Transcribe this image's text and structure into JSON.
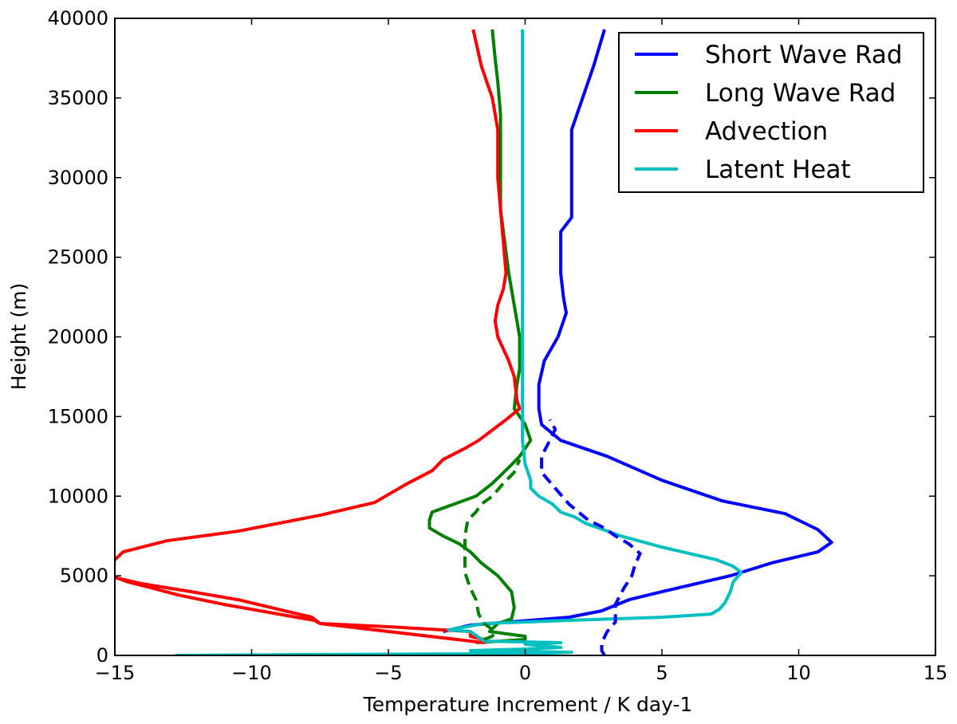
{
  "chart_data": {
    "type": "line",
    "xlabel": "Temperature Increment / K day-1",
    "ylabel": "Height (m)",
    "xlim": [
      -15,
      15
    ],
    "ylim": [
      0,
      40000
    ],
    "xticks": [
      -15,
      -10,
      -5,
      0,
      5,
      10,
      15
    ],
    "yticks": [
      0,
      5000,
      10000,
      15000,
      20000,
      25000,
      30000,
      35000,
      40000
    ],
    "xtick_labels": [
      "−15",
      "−10",
      "−5",
      "0",
      "5",
      "10",
      "15"
    ],
    "ytick_labels": [
      "0",
      "5000",
      "10000",
      "15000",
      "20000",
      "25000",
      "30000",
      "35000",
      "40000"
    ],
    "grid": false,
    "legend_position": "top-right",
    "series": [
      {
        "name": "Short Wave Rad",
        "color": "#0000ff",
        "style": "solid",
        "points": [
          [
            -3,
            1500
          ],
          [
            -2,
            1900
          ],
          [
            1.6,
            2400
          ],
          [
            2.8,
            2800
          ],
          [
            3.8,
            3500
          ],
          [
            5,
            4000
          ],
          [
            7.5,
            5000
          ],
          [
            9,
            5800
          ],
          [
            10.7,
            6500
          ],
          [
            11.2,
            7100
          ],
          [
            10.7,
            7900
          ],
          [
            9.5,
            8900
          ],
          [
            7.2,
            9700
          ],
          [
            5,
            11000
          ],
          [
            3,
            12500
          ],
          [
            1.3,
            13500
          ],
          [
            0.6,
            14500
          ],
          [
            0.5,
            15500
          ],
          [
            0.5,
            17000
          ],
          [
            0.7,
            18500
          ],
          [
            1.2,
            20000
          ],
          [
            1.5,
            21500
          ],
          [
            1.4,
            22500
          ],
          [
            1.3,
            24000
          ],
          [
            1.3,
            25500
          ],
          [
            1.3,
            26600
          ],
          [
            1.7,
            27500
          ],
          [
            1.7,
            29000
          ],
          [
            1.7,
            30000
          ],
          [
            1.7,
            31000
          ],
          [
            1.7,
            32000
          ],
          [
            1.7,
            33000
          ],
          [
            2,
            34500
          ],
          [
            2.5,
            37000
          ],
          [
            2.9,
            39300
          ]
        ]
      },
      {
        "name": "Long Wave Rad",
        "color": "#008000",
        "style": "solid",
        "points": [
          [
            -1.8,
            800
          ],
          [
            0,
            1000
          ],
          [
            0,
            1200
          ],
          [
            -1.3,
            1500
          ],
          [
            -1,
            2000
          ],
          [
            -0.5,
            2300
          ],
          [
            -0.4,
            3000
          ],
          [
            -0.5,
            4000
          ],
          [
            -1,
            5000
          ],
          [
            -1.6,
            5800
          ],
          [
            -2,
            6500
          ],
          [
            -2.4,
            7000
          ],
          [
            -3,
            7500
          ],
          [
            -3.5,
            8000
          ],
          [
            -3.5,
            8500
          ],
          [
            -3.4,
            9000
          ],
          [
            -2.6,
            9500
          ],
          [
            -1.8,
            10000
          ],
          [
            -1.2,
            10800
          ],
          [
            -0.6,
            11800
          ],
          [
            -0.2,
            12500
          ],
          [
            0.2,
            13500
          ],
          [
            0,
            14500
          ],
          [
            -0.4,
            15500
          ],
          [
            -0.3,
            17000
          ],
          [
            -0.2,
            18000
          ],
          [
            -0.2,
            19000
          ],
          [
            -0.2,
            20000
          ],
          [
            -0.3,
            21000
          ],
          [
            -0.6,
            24000
          ],
          [
            -0.9,
            28000
          ],
          [
            -0.9,
            30000
          ],
          [
            -0.9,
            32000
          ],
          [
            -0.9,
            34000
          ],
          [
            -1,
            36000
          ],
          [
            -1.1,
            37500
          ],
          [
            -1.2,
            39300
          ]
        ]
      },
      {
        "name": "Advection",
        "color": "#ff0000",
        "style": "solid",
        "points": [
          [
            -15.3,
            5000
          ],
          [
            -14,
            4500
          ],
          [
            -12.2,
            4000
          ],
          [
            -10.5,
            3500
          ],
          [
            -7.8,
            2400
          ],
          [
            -7.5,
            2000
          ],
          [
            -5,
            1800
          ],
          [
            -2,
            1500
          ],
          [
            -2,
            1200
          ],
          [
            -1.5,
            1000
          ],
          [
            -1.5,
            800
          ],
          [
            -7.5,
            2000
          ],
          [
            -7.7,
            2200
          ],
          [
            -11,
            3200
          ],
          [
            -12.7,
            3800
          ],
          [
            -13.8,
            4300
          ],
          [
            -14.5,
            4600
          ],
          [
            -15.3,
            5100
          ],
          [
            -15.2,
            5400
          ],
          [
            -15,
            6000
          ],
          [
            -14.7,
            6500
          ],
          [
            -13.1,
            7200
          ],
          [
            -10.5,
            7800
          ],
          [
            -7.5,
            8800
          ],
          [
            -5.5,
            9600
          ],
          [
            -4.3,
            10800
          ],
          [
            -3.4,
            11600
          ],
          [
            -3,
            12300
          ],
          [
            -2.2,
            13000
          ],
          [
            -1.7,
            13500
          ],
          [
            -0.7,
            14800
          ],
          [
            -0.2,
            15500
          ],
          [
            -0.3,
            16000
          ],
          [
            -0.4,
            17500
          ],
          [
            -0.6,
            18500
          ],
          [
            -1,
            20000
          ],
          [
            -1.1,
            21000
          ],
          [
            -1,
            22000
          ],
          [
            -0.8,
            23000
          ],
          [
            -0.7,
            24000
          ],
          [
            -0.8,
            26000
          ],
          [
            -0.9,
            28000
          ],
          [
            -1,
            30000
          ],
          [
            -1,
            31000
          ],
          [
            -1,
            32000
          ],
          [
            -1,
            33000
          ],
          [
            -1.2,
            35000
          ],
          [
            -1.6,
            37000
          ],
          [
            -1.9,
            39300
          ]
        ]
      },
      {
        "name": "Latent Heat",
        "color": "#00bfbf",
        "style": "solid",
        "points": [
          [
            -12.8,
            0
          ],
          [
            -8,
            50
          ],
          [
            -2,
            100
          ],
          [
            0,
            100
          ],
          [
            1.7,
            200
          ],
          [
            -2,
            300
          ],
          [
            0,
            400
          ],
          [
            1.3,
            500
          ],
          [
            0,
            700
          ],
          [
            1.3,
            800
          ],
          [
            -1.5,
            900
          ],
          [
            -2,
            1500
          ],
          [
            -2.8,
            1600
          ],
          [
            -1.5,
            2000
          ],
          [
            1.5,
            2200
          ],
          [
            5,
            2400
          ],
          [
            6.8,
            2600
          ],
          [
            7.1,
            2900
          ],
          [
            7.3,
            3300
          ],
          [
            7.5,
            4000
          ],
          [
            7.6,
            4600
          ],
          [
            7.9,
            5200
          ],
          [
            7.6,
            5600
          ],
          [
            7,
            6000
          ],
          [
            5,
            6800
          ],
          [
            3.5,
            7500
          ],
          [
            2.2,
            8300
          ],
          [
            1.8,
            8700
          ],
          [
            1.3,
            9000
          ],
          [
            1,
            9500
          ],
          [
            0.5,
            10000
          ],
          [
            0.2,
            10500
          ],
          [
            0.2,
            11000
          ],
          [
            0,
            12000
          ],
          [
            -0.1,
            13500
          ],
          [
            -0.1,
            15000
          ],
          [
            -0.1,
            20000
          ],
          [
            -0.1,
            25000
          ],
          [
            -0.1,
            30000
          ],
          [
            -0.1,
            35000
          ],
          [
            -0.1,
            39300
          ]
        ]
      },
      {
        "color": "#0000ff",
        "style": "dashed",
        "points": [
          [
            2.9,
            0
          ],
          [
            2.8,
            300
          ],
          [
            2.8,
            800
          ],
          [
            3,
            1500
          ],
          [
            3.3,
            2100
          ],
          [
            3.3,
            3200
          ],
          [
            3.6,
            4200
          ],
          [
            3.9,
            5000
          ],
          [
            4,
            5600
          ],
          [
            4.2,
            6400
          ],
          [
            3.8,
            7000
          ],
          [
            3.3,
            7500
          ],
          [
            2.9,
            8000
          ],
          [
            2.3,
            8500
          ],
          [
            1.6,
            9500
          ],
          [
            1.1,
            10500
          ],
          [
            0.6,
            11500
          ],
          [
            0.6,
            12500
          ],
          [
            0.9,
            13500
          ],
          [
            1.1,
            14200
          ],
          [
            0.9,
            14800
          ]
        ]
      },
      {
        "color": "#008000",
        "style": "dashed",
        "points": [
          [
            -1.5,
            1000
          ],
          [
            -1.2,
            1200
          ],
          [
            -1.1,
            1500
          ],
          [
            -1.5,
            2000
          ],
          [
            -1.7,
            2600
          ],
          [
            -1.8,
            3500
          ],
          [
            -2,
            4200
          ],
          [
            -2.2,
            5200
          ],
          [
            -2.2,
            6200
          ],
          [
            -2.2,
            7500
          ],
          [
            -2.1,
            8500
          ],
          [
            -1.8,
            9000
          ],
          [
            -1.6,
            9500
          ],
          [
            -1.2,
            10000
          ],
          [
            -0.8,
            10800
          ],
          [
            -0.4,
            11500
          ],
          [
            -0.2,
            12300
          ]
        ]
      }
    ]
  }
}
